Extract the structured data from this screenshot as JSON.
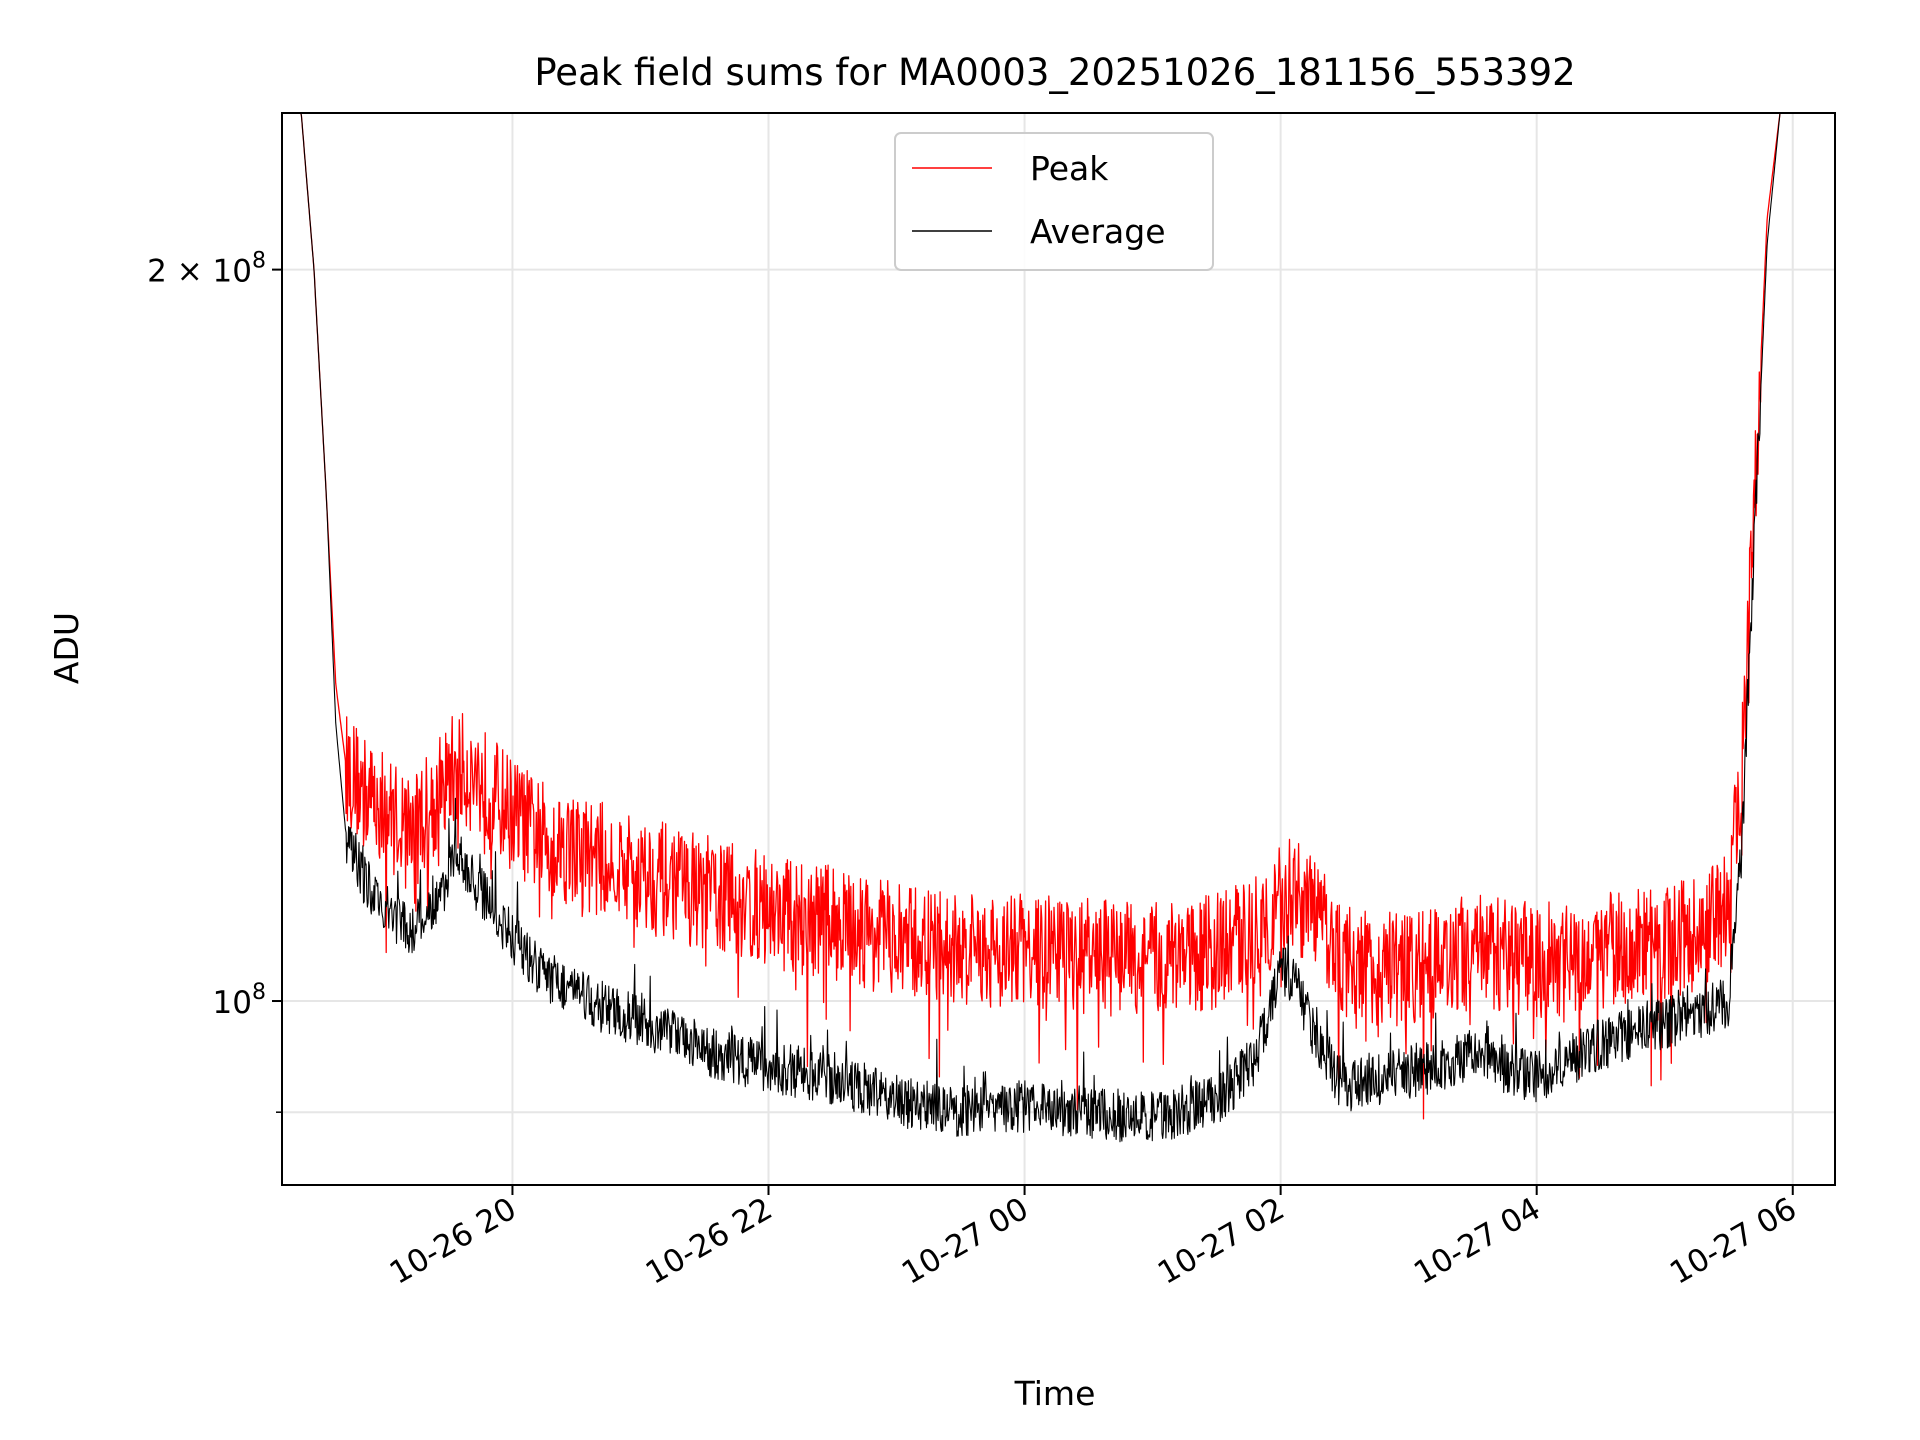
{
  "chart_data": {
    "type": "line",
    "title": "Peak field sums for MA0003_20251026_181156_553392",
    "xlabel": "Time",
    "ylabel": "ADU",
    "yscale": "log",
    "grid": true,
    "legend_position": "top-center",
    "x_unit": "hours since 10-26 18:00",
    "xlim": [
      18.2,
      30.33
    ],
    "ylim": [
      84000000,
      232000000
    ],
    "x_ticks": [
      {
        "value": 20,
        "label": "10-26 20"
      },
      {
        "value": 22,
        "label": "10-26 22"
      },
      {
        "value": 24,
        "label": "10-27 00"
      },
      {
        "value": 26,
        "label": "10-27 02"
      },
      {
        "value": 28,
        "label": "10-27 04"
      },
      {
        "value": 30,
        "label": "10-27 06"
      }
    ],
    "y_ticks": [
      {
        "value": 200000000,
        "label": "2 × 10⁸",
        "mantissa": "2 × 10",
        "exponent": "8"
      },
      {
        "value": 100000000,
        "label": "10⁸",
        "mantissa": "10",
        "exponent": "8"
      }
    ],
    "y_minor_ticks": [
      90000000
    ],
    "series": [
      {
        "name": "Peak",
        "color": "#ff0000",
        "noise": 0.055,
        "x": [
          18.2,
          18.35,
          18.45,
          18.55,
          18.62,
          18.7,
          18.85,
          19.0,
          19.2,
          19.4,
          19.55,
          19.7,
          19.9,
          20.2,
          20.6,
          21.0,
          21.5,
          22.0,
          22.5,
          23.0,
          23.5,
          24.0,
          24.5,
          25.0,
          25.5,
          25.8,
          26.0,
          26.1,
          26.3,
          26.5,
          26.8,
          27.2,
          27.5,
          28.0,
          28.5,
          29.0,
          29.3,
          29.5,
          29.6,
          29.7,
          29.8,
          29.9,
          30.0,
          30.33
        ],
        "y": [
          232000000,
          232000000,
          200000000,
          160000000,
          135000000,
          125000000,
          122000000,
          120000000,
          118000000,
          121000000,
          125000000,
          124000000,
          121000000,
          117000000,
          115000000,
          113000000,
          111000000,
          109000000,
          108000000,
          106000000,
          105000000,
          105000000,
          104500000,
          104000000,
          105000000,
          107000000,
          110000000,
          111000000,
          108000000,
          104000000,
          103000000,
          104000000,
          105000000,
          104000000,
          105000000,
          106000000,
          107000000,
          110000000,
          125000000,
          160000000,
          210000000,
          232000000,
          232000000,
          232000000
        ]
      },
      {
        "name": "Average",
        "color": "#000000",
        "noise": 0.025,
        "x": [
          18.2,
          18.35,
          18.45,
          18.55,
          18.62,
          18.7,
          18.85,
          19.0,
          19.2,
          19.4,
          19.55,
          19.7,
          19.9,
          20.2,
          20.6,
          21.0,
          21.5,
          22.0,
          22.5,
          23.0,
          23.5,
          24.0,
          24.5,
          25.0,
          25.5,
          25.8,
          26.0,
          26.1,
          26.3,
          26.5,
          26.8,
          27.2,
          27.5,
          28.0,
          28.5,
          29.0,
          29.3,
          29.5,
          29.6,
          29.7,
          29.8,
          29.9,
          30.0,
          30.33
        ],
        "y": [
          232000000,
          232000000,
          200000000,
          160000000,
          130000000,
          117000000,
          112000000,
          109000000,
          107000000,
          109000000,
          115000000,
          112000000,
          108000000,
          103000000,
          100000000,
          98000000,
          95500000,
          94000000,
          93000000,
          91000000,
          90000000,
          90500000,
          90000000,
          89500000,
          91000000,
          94500000,
          103000000,
          102000000,
          96000000,
          92000000,
          93000000,
          94000000,
          95000000,
          93000000,
          96000000,
          98000000,
          99000000,
          100000000,
          115000000,
          155000000,
          205000000,
          232000000,
          232000000,
          232000000
        ]
      }
    ]
  }
}
